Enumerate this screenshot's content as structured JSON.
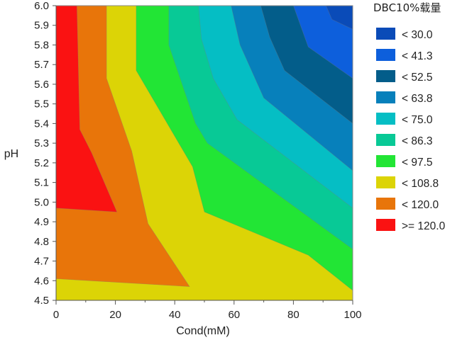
{
  "chart_data": {
    "type": "contour",
    "xlabel": "Cond(mM)",
    "ylabel": "pH",
    "xlim": [
      0,
      100
    ],
    "ylim": [
      4.5,
      6.0
    ],
    "x_ticks": [
      "0",
      "20",
      "40",
      "60",
      "80",
      "100"
    ],
    "y_ticks": [
      "4.5",
      "4.6",
      "4.7",
      "4.8",
      "4.9",
      "5.0",
      "5.1",
      "5.2",
      "5.3",
      "5.4",
      "5.5",
      "5.6",
      "5.7",
      "5.8",
      "5.9",
      "6.0"
    ],
    "legend": {
      "title": "DBC10%载量",
      "position": "right",
      "entries": [
        {
          "label": "< 30.0",
          "color": "#0a4bb8"
        },
        {
          "label": "< 41.3",
          "color": "#0d5fdc"
        },
        {
          "label": "< 52.5",
          "color": "#035d8a"
        },
        {
          "label": "< 63.8",
          "color": "#0780bb"
        },
        {
          "label": "< 75.0",
          "color": "#05bec4"
        },
        {
          "label": "< 86.3",
          "color": "#08c996"
        },
        {
          "label": "< 97.5",
          "color": "#22e535"
        },
        {
          "label": "< 108.8",
          "color": "#dcd406"
        },
        {
          "label": "< 120.0",
          "color": "#e8750a"
        },
        {
          "label": ">= 120.0",
          "color": "#fa1212"
        }
      ]
    },
    "regions": [
      {
        "level": "< 108.8",
        "color": "#dcd406",
        "points": [
          [
            0,
            4.5
          ],
          [
            100,
            4.5
          ],
          [
            100,
            6.0
          ],
          [
            0,
            6.0
          ]
        ]
      },
      {
        "level": "< 120.0",
        "color": "#e8750a",
        "points": [
          [
            0,
            4.61
          ],
          [
            45,
            4.57
          ],
          [
            31,
            4.89
          ],
          [
            25.5,
            5.26
          ],
          [
            17,
            5.63
          ],
          [
            17,
            6.0
          ],
          [
            0,
            6.0
          ]
        ]
      },
      {
        "level": ">= 120.0",
        "color": "#fa1212",
        "points": [
          [
            0,
            4.97
          ],
          [
            20.5,
            4.95
          ],
          [
            12,
            5.25
          ],
          [
            8,
            5.37
          ],
          [
            7,
            6.0
          ],
          [
            0,
            6.0
          ]
        ]
      },
      {
        "level": "< 97.5",
        "color": "#22e535",
        "points": [
          [
            100,
            4.55
          ],
          [
            85,
            4.73
          ],
          [
            50,
            4.95
          ],
          [
            46,
            5.18
          ],
          [
            27,
            5.67
          ],
          [
            27,
            6.0
          ],
          [
            100,
            6.0
          ]
        ]
      },
      {
        "level": "< 86.3",
        "color": "#08c996",
        "points": [
          [
            100,
            4.76
          ],
          [
            51,
            5.3
          ],
          [
            47,
            5.4
          ],
          [
            38,
            5.8
          ],
          [
            38,
            6.0
          ],
          [
            100,
            6.0
          ]
        ]
      },
      {
        "level": "< 75.0",
        "color": "#05bec4",
        "points": [
          [
            100,
            4.97
          ],
          [
            61,
            5.42
          ],
          [
            53,
            5.63
          ],
          [
            49,
            5.83
          ],
          [
            48,
            6.0
          ],
          [
            100,
            6.0
          ]
        ]
      },
      {
        "level": "< 63.8",
        "color": "#0780bb",
        "points": [
          [
            100,
            5.16
          ],
          [
            70,
            5.53
          ],
          [
            62,
            5.8
          ],
          [
            59,
            6.0
          ],
          [
            100,
            6.0
          ]
        ]
      },
      {
        "level": "< 52.5",
        "color": "#035d8a",
        "points": [
          [
            100,
            5.4
          ],
          [
            77,
            5.67
          ],
          [
            72,
            5.84
          ],
          [
            69,
            6.0
          ],
          [
            100,
            6.0
          ]
        ]
      },
      {
        "level": "< 41.3",
        "color": "#0d5fdc",
        "points": [
          [
            100,
            5.63
          ],
          [
            85,
            5.79
          ],
          [
            80,
            6.0
          ],
          [
            100,
            6.0
          ]
        ]
      },
      {
        "level": "< 30.0",
        "color": "#0a4bb8",
        "points": [
          [
            100,
            5.88
          ],
          [
            93,
            5.93
          ],
          [
            91,
            6.0
          ],
          [
            100,
            6.0
          ]
        ]
      }
    ]
  }
}
